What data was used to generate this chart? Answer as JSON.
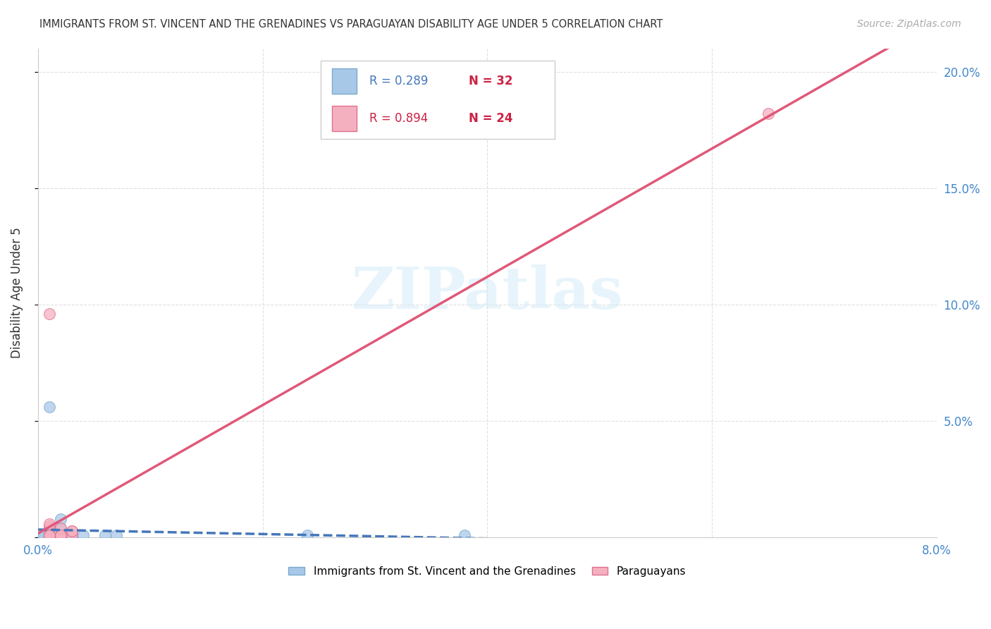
{
  "title": "IMMIGRANTS FROM ST. VINCENT AND THE GRENADINES VS PARAGUAYAN DISABILITY AGE UNDER 5 CORRELATION CHART",
  "source": "Source: ZipAtlas.com",
  "ylabel": "Disability Age Under 5",
  "watermark": "ZIPatlas",
  "xlim": [
    0.0,
    0.08
  ],
  "ylim": [
    0.0,
    0.21
  ],
  "xtick_positions": [
    0.0,
    0.02,
    0.04,
    0.06,
    0.08
  ],
  "xticklabels": [
    "0.0%",
    "",
    "",
    "",
    "8.0%"
  ],
  "ytick_positions": [
    0.0,
    0.05,
    0.1,
    0.15,
    0.2
  ],
  "yticklabels": [
    "",
    "5.0%",
    "10.0%",
    "15.0%",
    "20.0%"
  ],
  "blue_label": "Immigrants from St. Vincent and the Grenadines",
  "pink_label": "Paraguayans",
  "blue_R": "0.289",
  "blue_N": "32",
  "pink_R": "0.894",
  "pink_N": "24",
  "blue_scatter_color": "#a8c8e8",
  "blue_scatter_edge": "#7aaad0",
  "pink_scatter_color": "#f5b0c0",
  "pink_scatter_edge": "#e07090",
  "blue_line_color": "#4477bb",
  "pink_line_color": "#e05878",
  "grid_color": "#dddddd",
  "axis_color": "#cccccc",
  "text_color": "#333333",
  "label_color": "#4488cc",
  "blue_scatter_x": [
    0.0008,
    0.001,
    0.001,
    0.001,
    0.001,
    0.001,
    0.001,
    0.001,
    0.0005,
    0.0005,
    0.001,
    0.001,
    0.001,
    0.001,
    0.001,
    0.001,
    0.002,
    0.002,
    0.002,
    0.002,
    0.003,
    0.003,
    0.003,
    0.004,
    0.006,
    0.007,
    0.001,
    0.002,
    0.001,
    0.002,
    0.024,
    0.038
  ],
  "blue_scatter_y": [
    0.001,
    0.001,
    0.001,
    0.001,
    0.001,
    0.001,
    0.001,
    0.001,
    0.001,
    0.001,
    0.001,
    0.001,
    0.001,
    0.001,
    0.001,
    0.001,
    0.001,
    0.001,
    0.001,
    0.001,
    0.001,
    0.001,
    0.001,
    0.001,
    0.001,
    0.001,
    0.0035,
    0.004,
    0.056,
    0.008,
    0.001,
    0.001
  ],
  "pink_scatter_x": [
    0.001,
    0.001,
    0.001,
    0.001,
    0.001,
    0.002,
    0.002,
    0.002,
    0.002,
    0.003,
    0.003,
    0.003,
    0.001,
    0.002,
    0.001,
    0.001,
    0.001,
    0.001,
    0.001,
    0.002,
    0.001,
    0.001,
    0.001,
    0.065
  ],
  "pink_scatter_y": [
    0.001,
    0.001,
    0.001,
    0.001,
    0.001,
    0.001,
    0.001,
    0.001,
    0.001,
    0.001,
    0.003,
    0.003,
    0.004,
    0.004,
    0.005,
    0.006,
    0.001,
    0.001,
    0.001,
    0.001,
    0.001,
    0.001,
    0.096,
    0.182
  ]
}
